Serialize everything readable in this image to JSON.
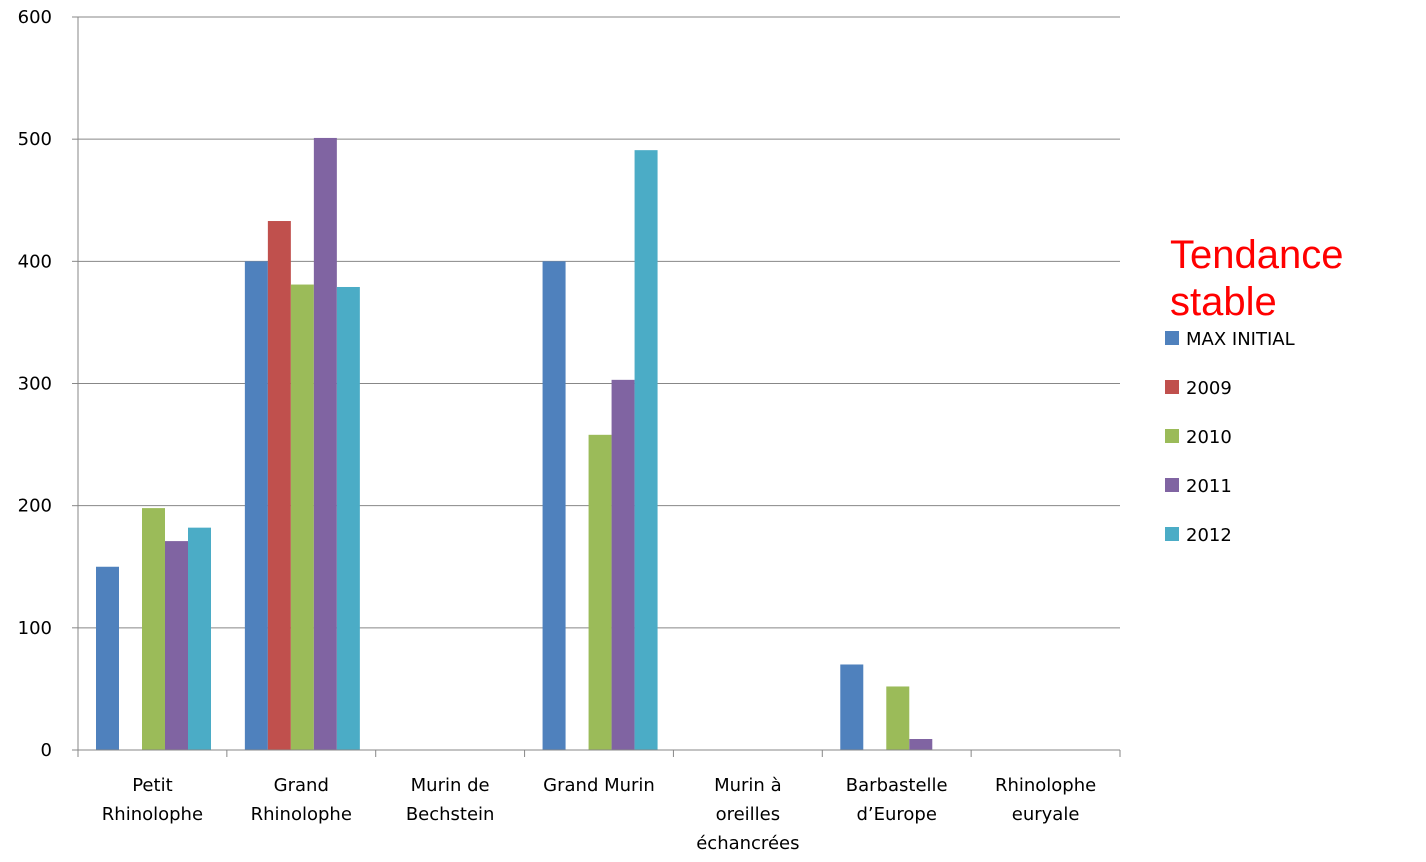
{
  "chart_data": {
    "type": "bar",
    "categories": [
      [
        "Petit",
        "Rhinolophe"
      ],
      [
        "Grand",
        "Rhinolophe"
      ],
      [
        "Murin de",
        "Bechstein"
      ],
      [
        "Grand Murin"
      ],
      [
        "Murin à",
        "oreilles",
        "échancrées"
      ],
      [
        "Barbastelle",
        "d’Europe"
      ],
      [
        "Rhinolophe",
        "euryale"
      ]
    ],
    "series": [
      {
        "name": "MAX INITIAL",
        "color": "#4F81BD",
        "values": [
          150,
          400,
          0,
          400,
          0,
          70,
          0
        ]
      },
      {
        "name": "2009",
        "color": "#C0504D",
        "values": [
          0,
          433,
          0,
          0,
          0,
          0,
          0
        ]
      },
      {
        "name": "2010",
        "color": "#9BBB59",
        "values": [
          198,
          381,
          0,
          258,
          0,
          52,
          0
        ]
      },
      {
        "name": "2011",
        "color": "#8064A2",
        "values": [
          171,
          501,
          0,
          303,
          0,
          9,
          0
        ]
      },
      {
        "name": "2012",
        "color": "#4BACC6",
        "values": [
          182,
          379,
          0,
          491,
          0,
          0,
          0
        ]
      }
    ],
    "yticks": [
      "0",
      "100",
      "200",
      "300",
      "400",
      "500",
      "600"
    ],
    "ylim": [
      0,
      600
    ],
    "grid": true,
    "legend_position": "right",
    "annotation": [
      "Tendance",
      "stable"
    ]
  }
}
